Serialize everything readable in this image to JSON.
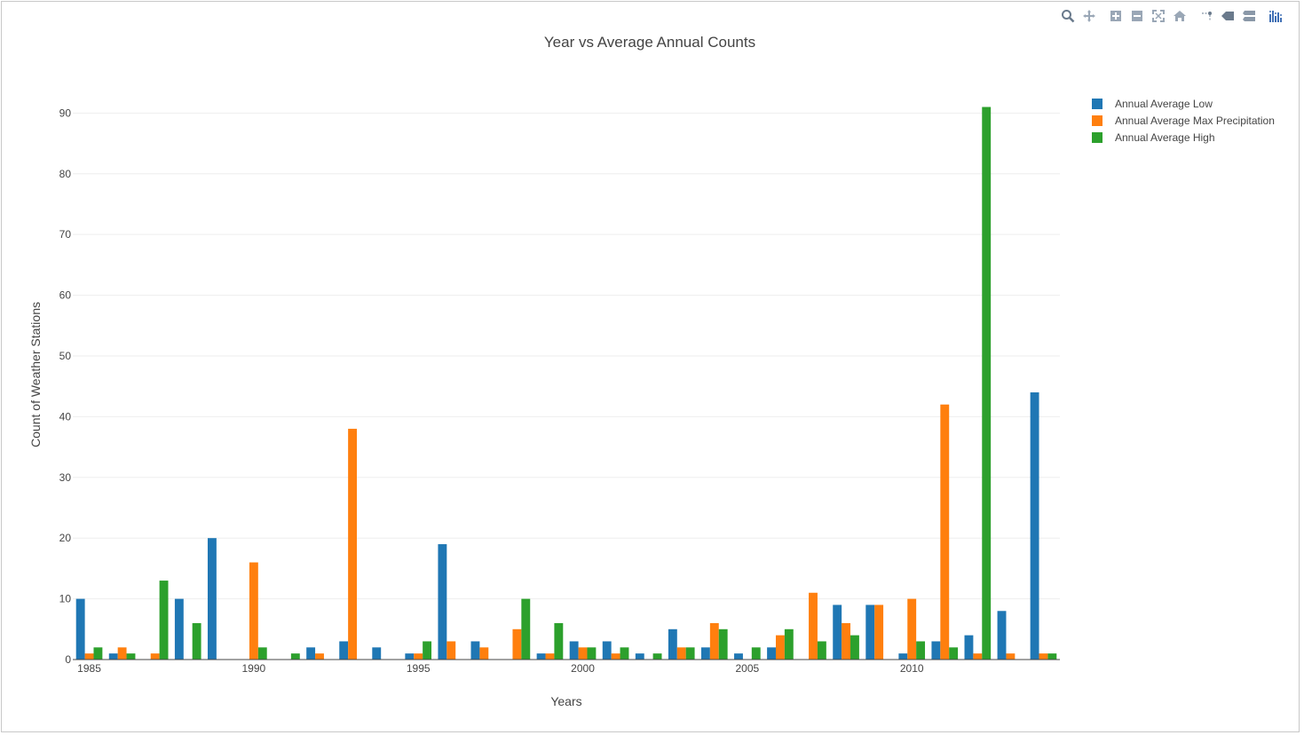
{
  "chart_data": {
    "type": "bar",
    "title": "Year vs Average Annual Counts",
    "xlabel": "Years",
    "ylabel": "Count of Weather Stations",
    "x": [
      1985,
      1986,
      1987,
      1988,
      1989,
      1990,
      1991,
      1992,
      1993,
      1994,
      1995,
      1996,
      1997,
      1998,
      1999,
      2000,
      2001,
      2002,
      2003,
      2004,
      2005,
      2006,
      2007,
      2008,
      2009,
      2010,
      2011,
      2012,
      2013,
      2014
    ],
    "xticks": [
      1985,
      1990,
      1995,
      2000,
      2005,
      2010
    ],
    "yticks": [
      0,
      10,
      20,
      30,
      40,
      50,
      60,
      70,
      80,
      90
    ],
    "ylim": [
      0,
      94
    ],
    "grid": true,
    "legend_position": "top-right",
    "series": [
      {
        "name": "Annual Average Low",
        "color": "#1f77b4",
        "values": [
          10,
          1,
          0,
          10,
          20,
          0,
          0,
          2,
          3,
          2,
          1,
          19,
          3,
          0,
          1,
          3,
          3,
          1,
          5,
          2,
          1,
          2,
          0,
          9,
          9,
          1,
          3,
          4,
          8,
          44
        ]
      },
      {
        "name": "Annual Average Max Precipitation",
        "color": "#ff7f0e",
        "values": [
          1,
          2,
          1,
          0,
          0,
          16,
          0,
          1,
          38,
          0,
          1,
          3,
          2,
          5,
          1,
          2,
          1,
          0,
          2,
          6,
          0,
          4,
          11,
          6,
          9,
          10,
          42,
          1,
          1,
          1
        ]
      },
      {
        "name": "Annual Average High",
        "color": "#2ca02c",
        "values": [
          2,
          1,
          13,
          6,
          0,
          2,
          1,
          0,
          0,
          0,
          3,
          0,
          0,
          10,
          6,
          2,
          2,
          1,
          2,
          5,
          2,
          5,
          3,
          4,
          0,
          3,
          2,
          91,
          0,
          1
        ]
      }
    ]
  },
  "modebar": {
    "icons": [
      "zoom-icon",
      "pan-icon",
      "zoom-in-icon",
      "zoom-out-icon",
      "autoscale-icon",
      "reset-axes-icon",
      "spike-lines-icon",
      "hover-closest-icon",
      "hover-compare-icon",
      "plotly-logo-icon"
    ]
  }
}
